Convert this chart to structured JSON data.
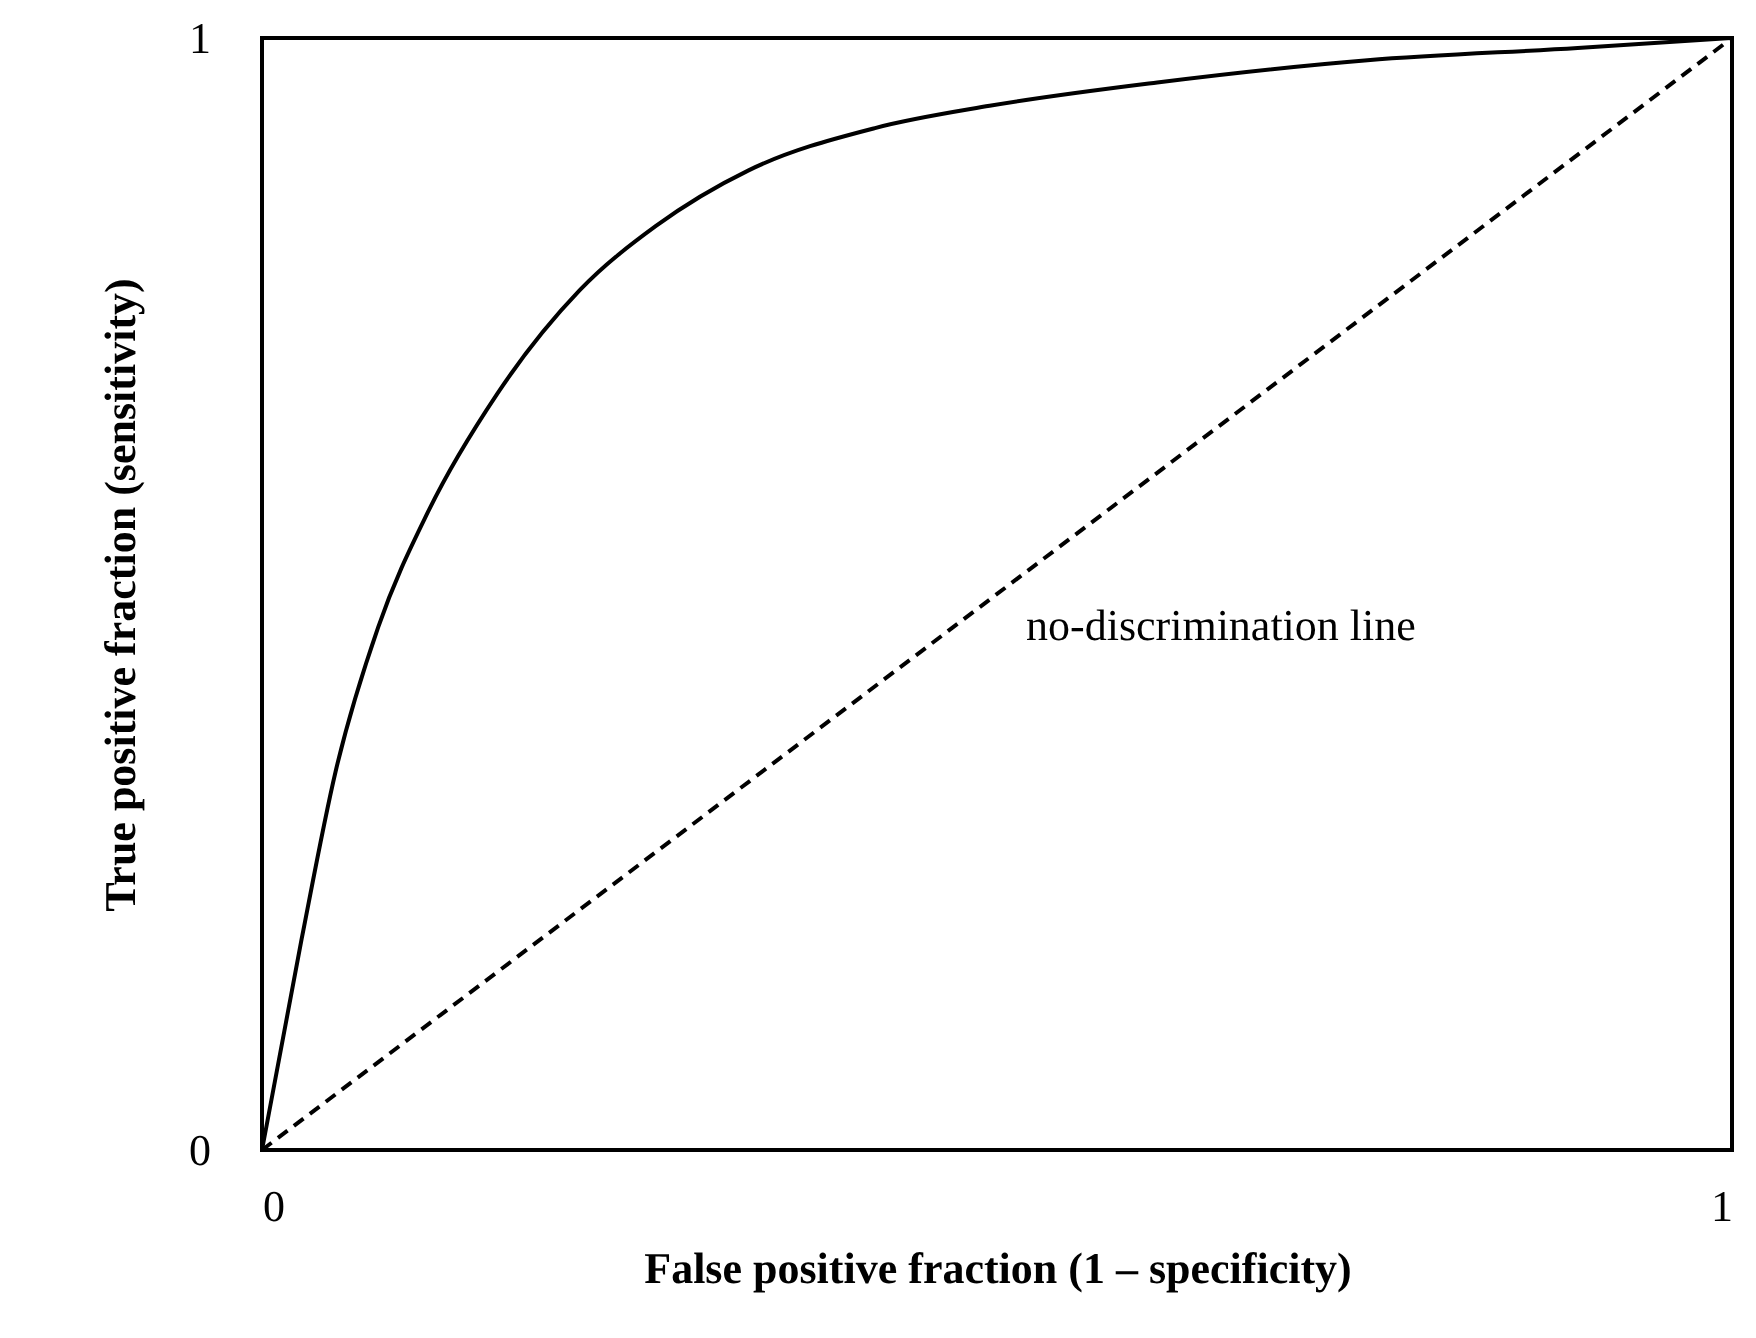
{
  "chart_data": {
    "type": "line",
    "xlabel": "False positive fraction (1 – specificity)",
    "ylabel": "True positive fraction (sensitivity)",
    "xlim": [
      0,
      1
    ],
    "ylim": [
      0,
      1
    ],
    "xticks": [
      0,
      1
    ],
    "yticks": [
      0,
      1
    ],
    "annotations": [
      "no-discrimination line"
    ],
    "series": [
      {
        "color": "#000000",
        "line_style": "solid",
        "x": [
          0,
          0.027,
          0.05,
          0.079,
          0.113,
          0.16,
          0.216,
          0.268,
          0.331,
          0.417,
          0.495,
          0.609,
          0.752,
          0.895,
          1
        ],
        "values": [
          0,
          0.19,
          0.34,
          0.47,
          0.574,
          0.68,
          0.773,
          0.831,
          0.881,
          0.919,
          0.939,
          0.96,
          0.98,
          0.991,
          1
        ]
      },
      {
        "color": "#000000",
        "line_style": "dashed",
        "x": [
          0,
          1
        ],
        "values": [
          0,
          1
        ]
      }
    ]
  }
}
